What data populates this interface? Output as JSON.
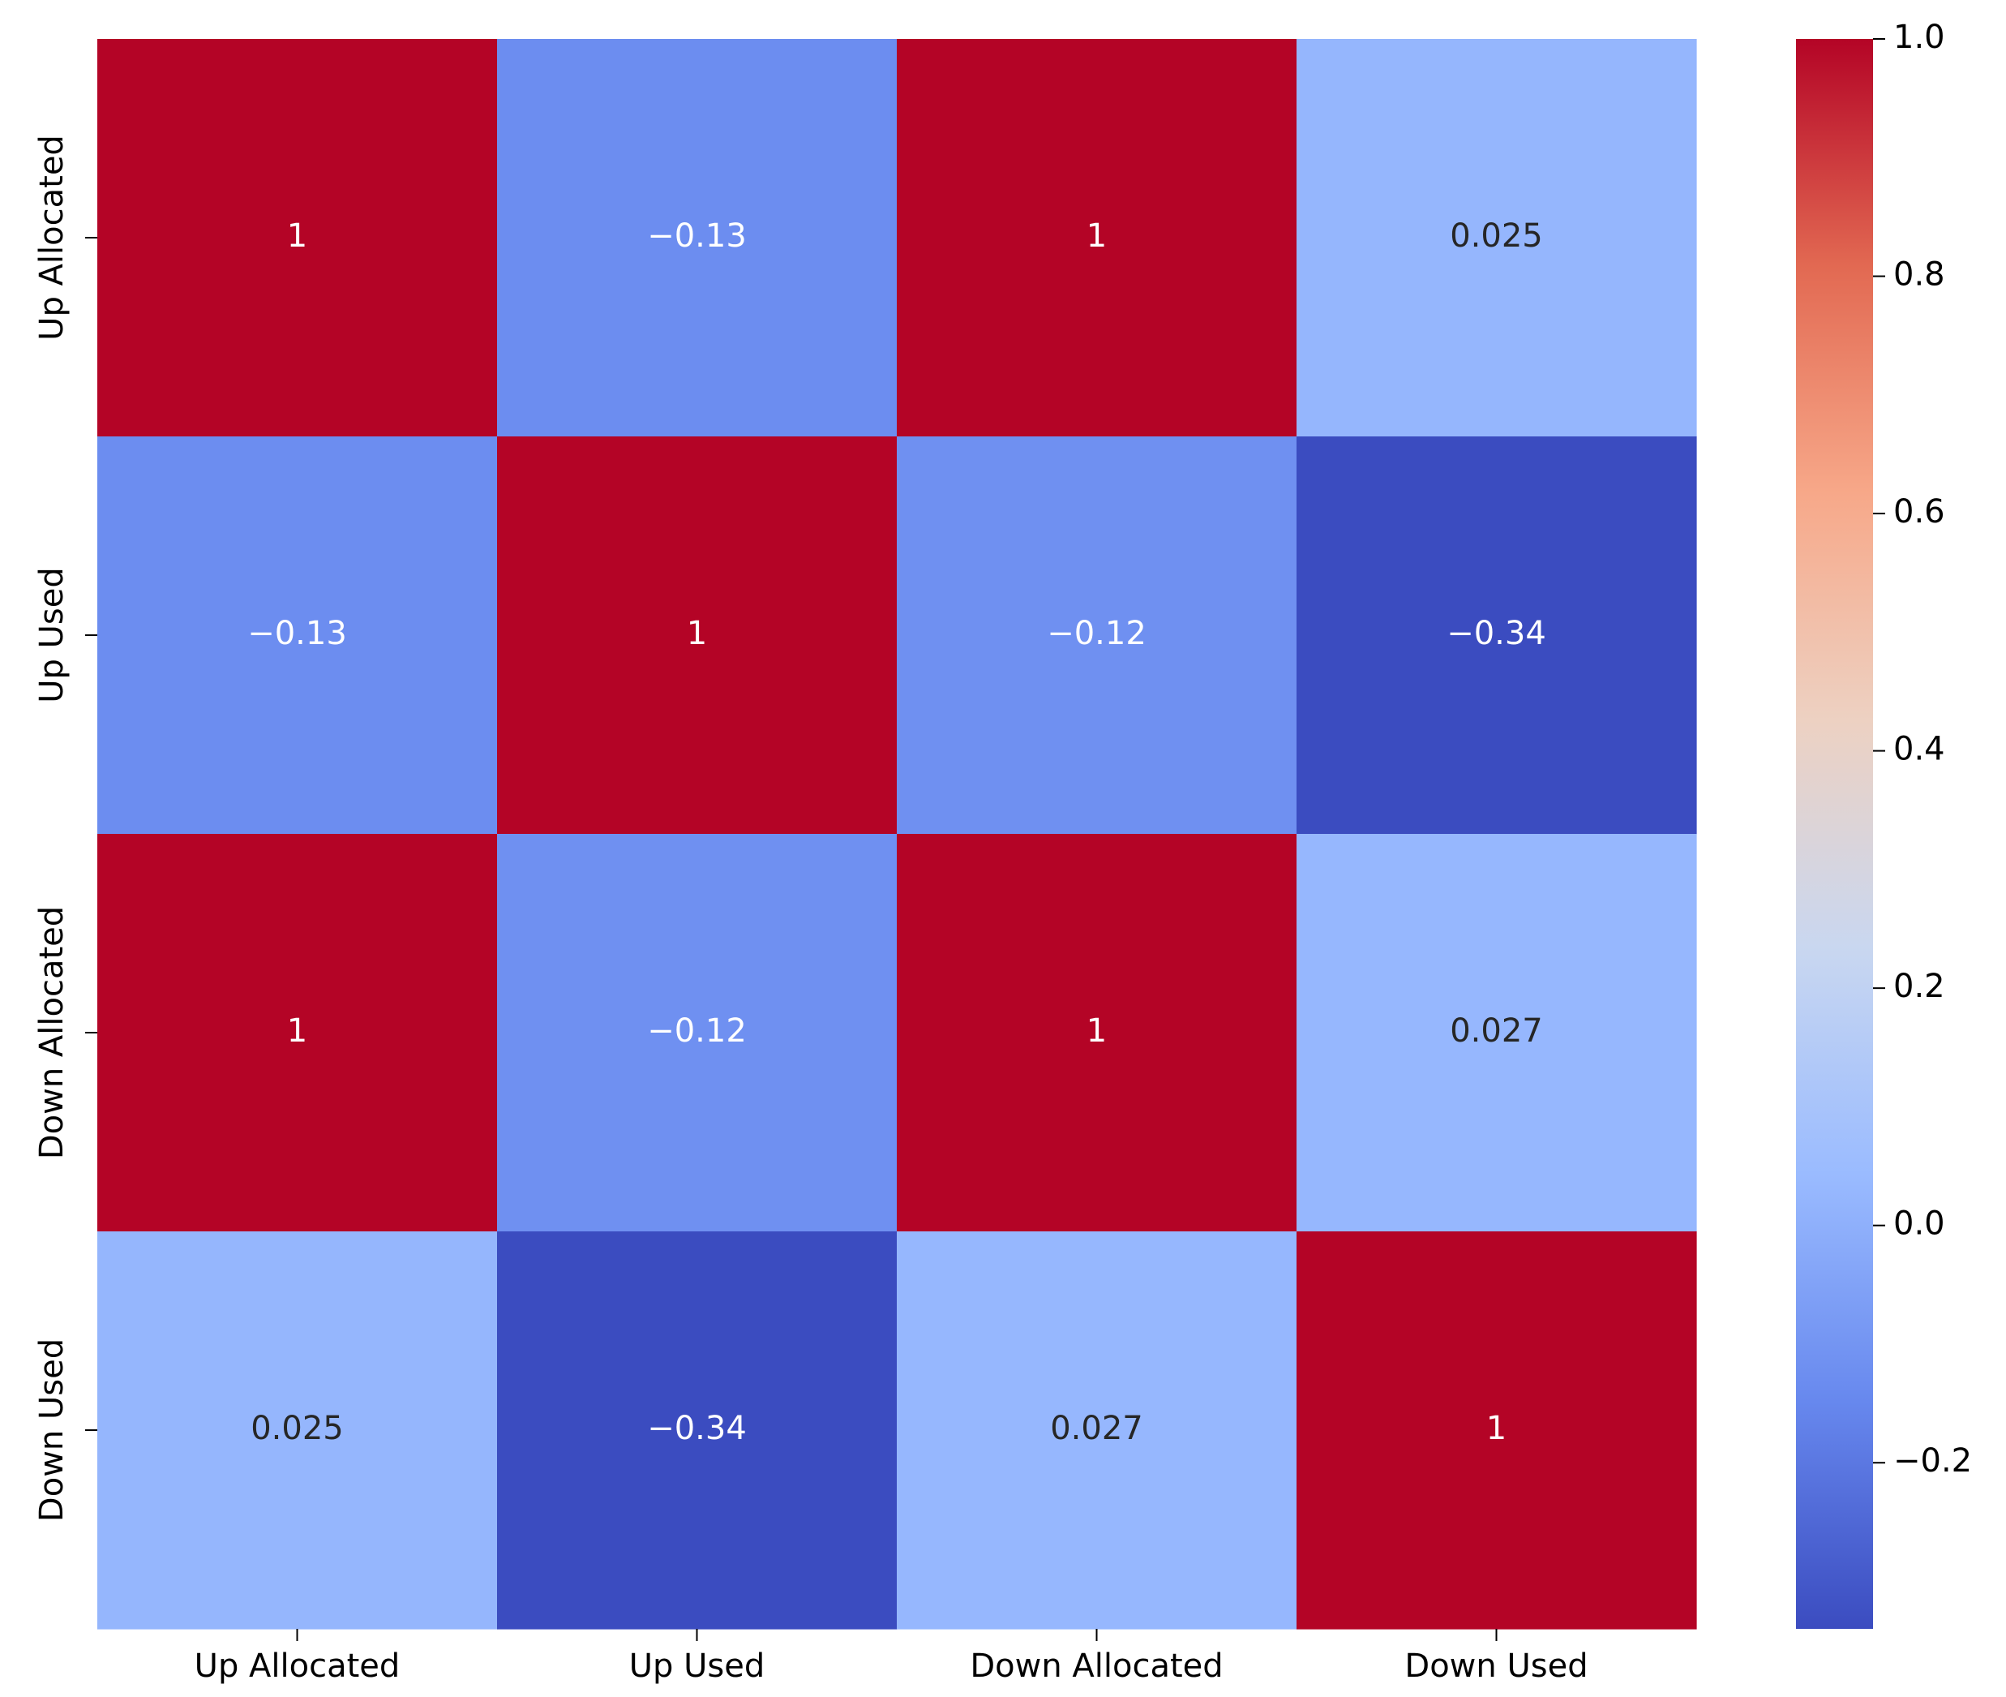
{
  "chart_data": {
    "type": "heatmap",
    "title": "",
    "xlabel": "",
    "ylabel": "",
    "x_categories": [
      "Up Allocated",
      "Up Used",
      "Down Allocated",
      "Down Used"
    ],
    "y_categories": [
      "Up Allocated",
      "Up Used",
      "Down Allocated",
      "Down Used"
    ],
    "values": [
      [
        1,
        -0.13,
        1,
        0.025
      ],
      [
        -0.13,
        1,
        -0.12,
        -0.34
      ],
      [
        1,
        -0.12,
        1,
        0.027
      ],
      [
        0.025,
        -0.34,
        0.027,
        1
      ]
    ],
    "annotations": [
      [
        "1",
        "−0.13",
        "1",
        "0.025"
      ],
      [
        "−0.13",
        "1",
        "−0.12",
        "−0.34"
      ],
      [
        "1",
        "−0.12",
        "1",
        "0.027"
      ],
      [
        "0.025",
        "−0.34",
        "0.027",
        "1"
      ]
    ],
    "colormap": "coolwarm",
    "colormap_stops": [
      "#3b4cc0",
      "#6788ee",
      "#9abbff",
      "#c9d7f0",
      "#edd1c2",
      "#f7a889",
      "#e26952",
      "#b40426"
    ],
    "color_range": [
      -0.34,
      1.0
    ],
    "colorbar": {
      "ticks": [
        1.0,
        0.8,
        0.6,
        0.4,
        0.2,
        0.0,
        -0.2
      ],
      "tick_labels": [
        "1.0",
        "0.8",
        "0.6",
        "0.4",
        "0.2",
        "0.0",
        "−0.2"
      ]
    }
  }
}
